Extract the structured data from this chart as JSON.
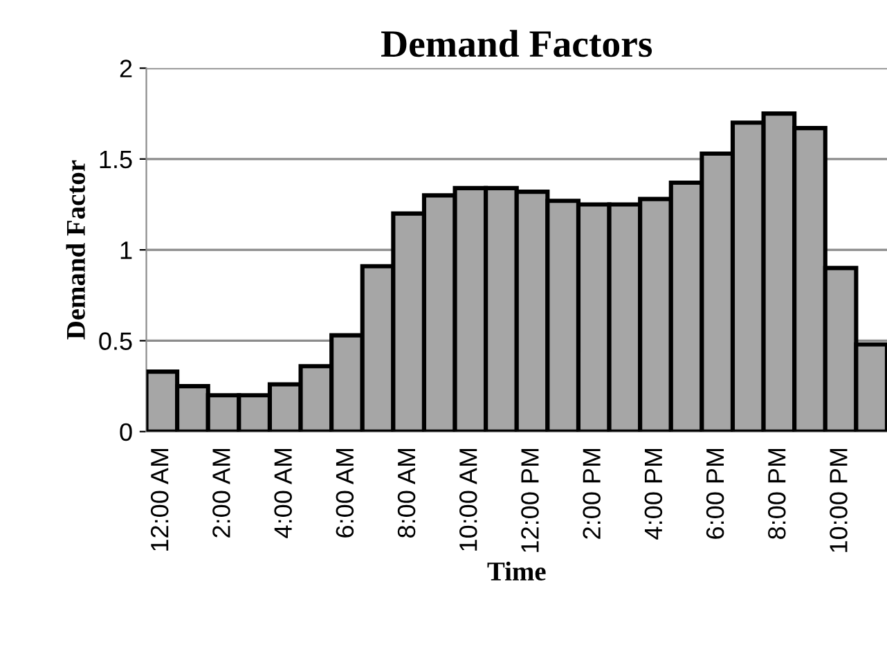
{
  "chart_data": {
    "type": "bar",
    "title": "Demand Factors",
    "xlabel": "Time",
    "ylabel": "Demand Factor",
    "categories": [
      "12:00 AM",
      null,
      "2:00 AM",
      null,
      "4:00 AM",
      null,
      "6:00 AM",
      null,
      "8:00 AM",
      null,
      "10:00 AM",
      null,
      "12:00 PM",
      null,
      "2:00 PM",
      null,
      "4:00 PM",
      null,
      "6:00 PM",
      null,
      "8:00 PM",
      null,
      "10:00 PM",
      null
    ],
    "values": [
      0.33,
      0.25,
      0.2,
      0.2,
      0.26,
      0.36,
      0.53,
      0.91,
      1.2,
      1.3,
      1.34,
      1.34,
      1.32,
      1.27,
      1.25,
      1.25,
      1.28,
      1.37,
      1.53,
      1.7,
      1.75,
      1.67,
      0.9,
      0.48
    ],
    "color": "#a6a6a6",
    "ylim": [
      0,
      2
    ],
    "yticks": [
      0,
      0.5,
      1,
      1.5,
      2
    ],
    "grid": "y",
    "legend": false
  }
}
